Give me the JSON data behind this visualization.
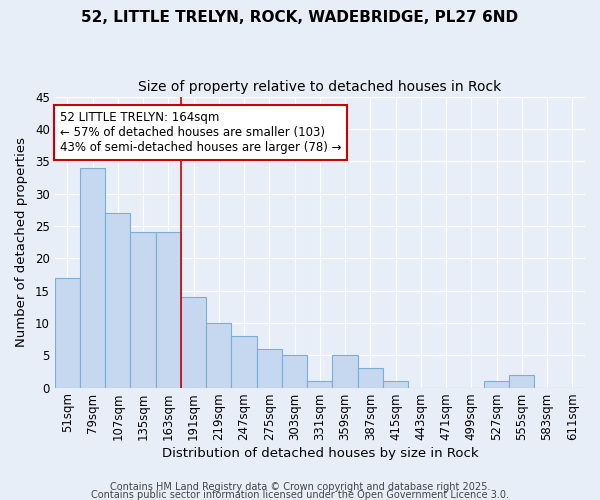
{
  "title_line1": "52, LITTLE TRELYN, ROCK, WADEBRIDGE, PL27 6ND",
  "title_line2": "Size of property relative to detached houses in Rock",
  "xlabel": "Distribution of detached houses by size in Rock",
  "ylabel": "Number of detached properties",
  "categories": [
    "51sqm",
    "79sqm",
    "107sqm",
    "135sqm",
    "163sqm",
    "191sqm",
    "219sqm",
    "247sqm",
    "275sqm",
    "303sqm",
    "331sqm",
    "359sqm",
    "387sqm",
    "415sqm",
    "443sqm",
    "471sqm",
    "499sqm",
    "527sqm",
    "555sqm",
    "583sqm",
    "611sqm"
  ],
  "values": [
    17,
    34,
    27,
    24,
    24,
    14,
    10,
    8,
    6,
    5,
    1,
    5,
    3,
    1,
    0,
    0,
    0,
    1,
    2,
    0,
    0
  ],
  "bar_color": "#c5d8f0",
  "bar_edge_color": "#7aaed6",
  "background_color": "#e8eef8",
  "vline_x": 4.5,
  "vline_color": "#cc0000",
  "annotation_text": "52 LITTLE TRELYN: 164sqm\n← 57% of detached houses are smaller (103)\n43% of semi-detached houses are larger (78) →",
  "annotation_box_color": "white",
  "annotation_box_edge_color": "#cc0000",
  "ylim": [
    0,
    45
  ],
  "yticks": [
    0,
    5,
    10,
    15,
    20,
    25,
    30,
    35,
    40,
    45
  ],
  "footer_line1": "Contains HM Land Registry data © Crown copyright and database right 2025.",
  "footer_line2": "Contains public sector information licensed under the Open Government Licence 3.0.",
  "title_fontsize": 11,
  "subtitle_fontsize": 10,
  "axis_label_fontsize": 9.5,
  "tick_fontsize": 8.5,
  "annotation_fontsize": 8.5,
  "footer_fontsize": 7
}
